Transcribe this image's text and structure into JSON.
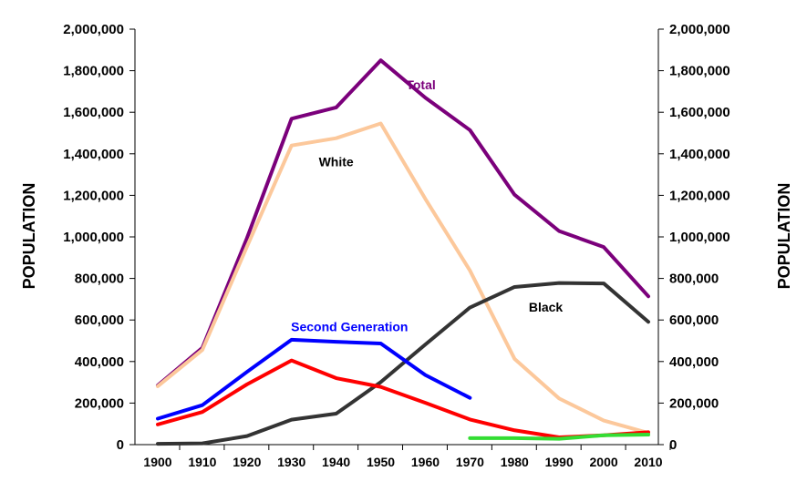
{
  "chart_data": {
    "type": "line",
    "ylabel_left": "POPULATION",
    "ylabel_right": "POPULATION",
    "x": [
      1900,
      1910,
      1920,
      1930,
      1940,
      1950,
      1960,
      1970,
      1980,
      1990,
      2000,
      2010
    ],
    "ylim": [
      0,
      2000000
    ],
    "y_ticks": [
      "0",
      "200,000",
      "400,000",
      "600,000",
      "800,000",
      "1,000,000",
      "1,200,000",
      "1,400,000",
      "1,600,000",
      "1,800,000",
      "2,000,000"
    ],
    "series": [
      {
        "name": "Total",
        "color": "#7b007b",
        "x": [
          1900,
          1910,
          1920,
          1930,
          1940,
          1950,
          1960,
          1970,
          1980,
          1990,
          2000,
          2010
        ],
        "values": [
          285000,
          466000,
          994000,
          1569000,
          1623000,
          1850000,
          1670000,
          1514000,
          1203000,
          1028000,
          951000,
          714000
        ]
      },
      {
        "name": "White",
        "color": "#fcc89b",
        "x": [
          1900,
          1910,
          1920,
          1930,
          1940,
          1950,
          1960,
          1970,
          1980,
          1990,
          2000,
          2010
        ],
        "values": [
          281000,
          456000,
          953000,
          1440000,
          1475000,
          1546000,
          1183000,
          838000,
          413000,
          222000,
          116000,
          56000
        ]
      },
      {
        "name": "Black",
        "color": "#333333",
        "x": [
          1900,
          1910,
          1920,
          1930,
          1940,
          1950,
          1960,
          1970,
          1980,
          1990,
          2000,
          2010
        ],
        "values": [
          4000,
          6000,
          41000,
          120000,
          149000,
          301000,
          482000,
          660000,
          759000,
          778000,
          776000,
          591000
        ]
      },
      {
        "name": "Second Generation",
        "color": "#0000ff",
        "x": [
          1900,
          1910,
          1920,
          1930,
          1940,
          1950,
          1960,
          1970
        ],
        "values": [
          125000,
          190000,
          350000,
          505000,
          495000,
          487000,
          335000,
          225000
        ]
      },
      {
        "name": "",
        "color": "#ff0000",
        "x": [
          1900,
          1910,
          1920,
          1930,
          1940,
          1950,
          1960,
          1970,
          1980,
          1990,
          2000,
          2010
        ],
        "values": [
          97000,
          157000,
          290000,
          405000,
          320000,
          278000,
          201000,
          121000,
          69000,
          35000,
          45000,
          60000
        ]
      },
      {
        "name": "",
        "color": "#33dd33",
        "x": [
          1970,
          1980,
          1990,
          2000,
          2010
        ],
        "values": [
          31000,
          31000,
          28000,
          45000,
          48000
        ]
      }
    ],
    "series_labels": [
      {
        "text": "Total",
        "color": "#7b007b",
        "at_x": 1959,
        "at_y": 1710000
      },
      {
        "text": "White",
        "color": "#000000",
        "at_x": 1940,
        "at_y": 1340000
      },
      {
        "text": "Black",
        "color": "#000000",
        "at_x": 1987,
        "at_y": 640000
      },
      {
        "text": "Second Generation",
        "color": "#0000ff",
        "at_x": 1943,
        "at_y": 545000
      }
    ],
    "grid": false
  }
}
